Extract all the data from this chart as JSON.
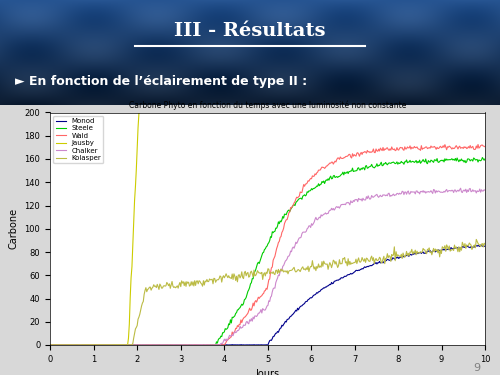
{
  "title_slide": "III - Résultats",
  "subtitle_slide": "► En fonction de l’éclairement de type II :",
  "chart_title": "Carbone Phyto en fonction du temps avec une luminosité non constante",
  "xlabel": "Jours",
  "ylabel": "Carbone",
  "xlim": [
    0,
    10
  ],
  "ylim": [
    0,
    200
  ],
  "yticks": [
    0,
    20,
    40,
    60,
    80,
    100,
    120,
    140,
    160,
    180,
    200
  ],
  "xticks": [
    0,
    1,
    2,
    3,
    4,
    5,
    6,
    7,
    8,
    9,
    10
  ],
  "legend_labels": [
    "Monod",
    "Steele",
    "Wald",
    "Jausby",
    "Chalker",
    "Kolasper"
  ],
  "line_colors": [
    "#00008B",
    "#00CC00",
    "#FF6666",
    "#CCCC00",
    "#CC88CC",
    "#BBBB44"
  ],
  "page_number": "9"
}
